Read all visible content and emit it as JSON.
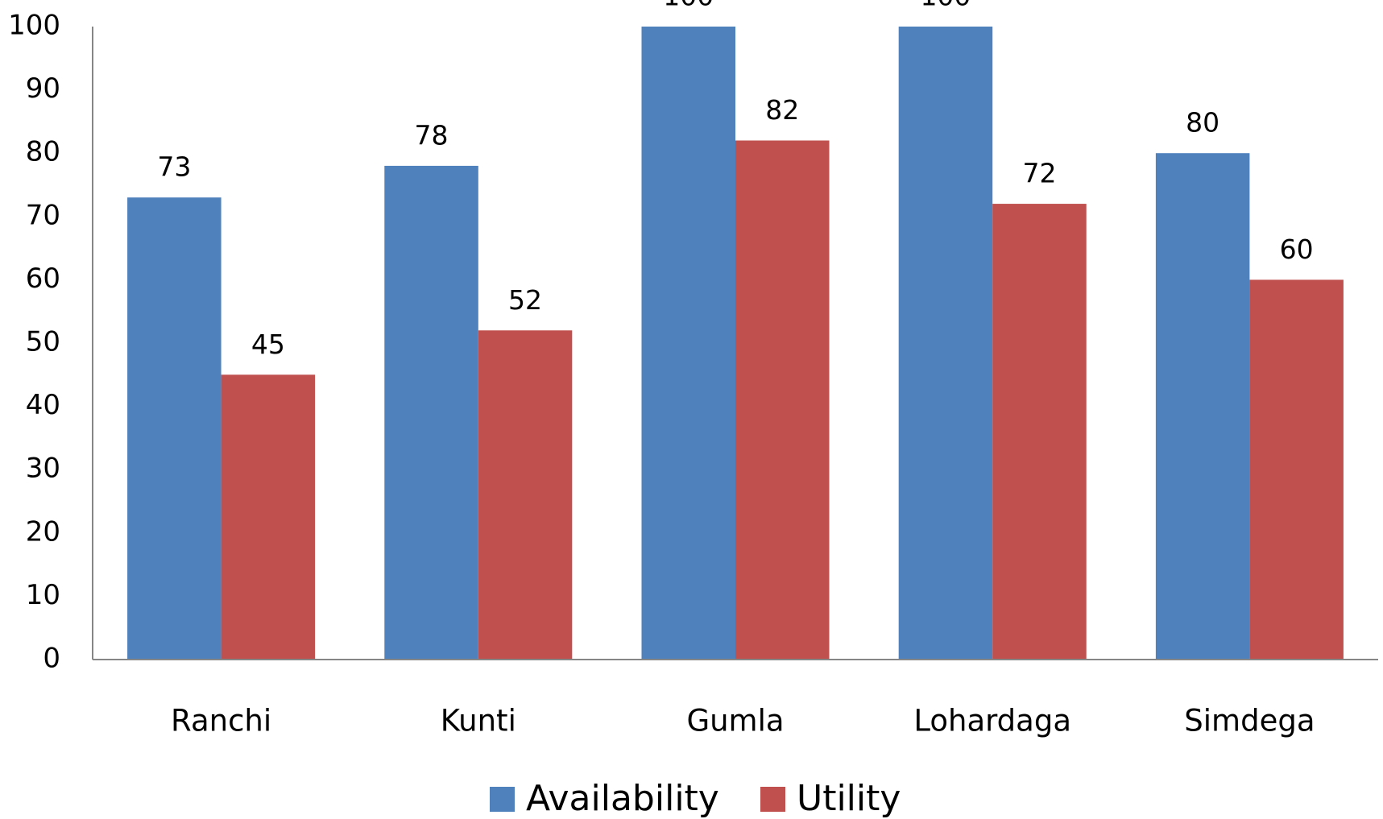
{
  "chart_data": {
    "type": "bar",
    "categories": [
      "Ranchi",
      "Kunti",
      "Gumla",
      "Lohardaga",
      "Simdega"
    ],
    "series": [
      {
        "name": "Availability",
        "color": "#4f81bd",
        "values": [
          73,
          78,
          100,
          100,
          80
        ]
      },
      {
        "name": "Utility",
        "color": "#c0504d",
        "values": [
          45,
          52,
          82,
          72,
          60
        ]
      }
    ],
    "ylim": [
      0,
      100
    ],
    "yticks": [
      0,
      10,
      20,
      30,
      40,
      50,
      60,
      70,
      80,
      90,
      100
    ],
    "grid": false,
    "legend": "bottom"
  }
}
